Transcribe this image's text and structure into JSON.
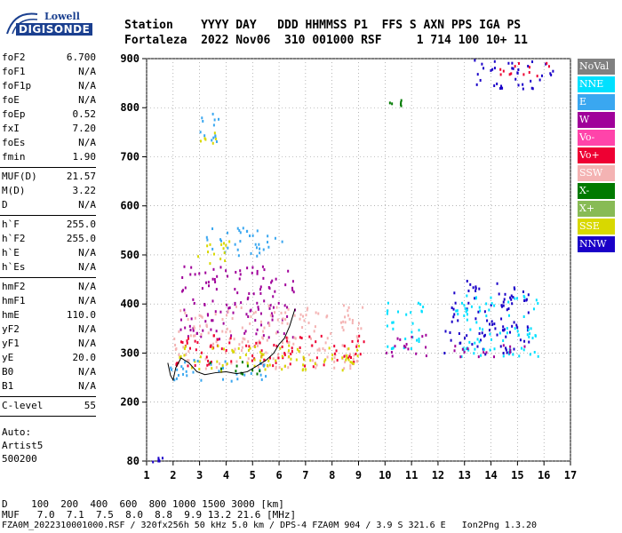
{
  "logo": {
    "line1": "Lowell",
    "line2": "DIGISONDE"
  },
  "header": {
    "row1": "Station    YYYY DAY   DDD HHMMSS P1  FFS S AXN PPS IGA PS",
    "row2": "Fortaleza  2022 Nov06  310 001000 RSF     1 714 100 10+ 11"
  },
  "params": {
    "group1": [
      {
        "k": "foF2",
        "v": "6.700"
      },
      {
        "k": "foF1",
        "v": "N/A"
      },
      {
        "k": "foF1p",
        "v": "N/A"
      },
      {
        "k": "foE",
        "v": "N/A"
      },
      {
        "k": "foEp",
        "v": "0.52"
      },
      {
        "k": "fxI",
        "v": "7.20"
      },
      {
        "k": "foEs",
        "v": "N/A"
      },
      {
        "k": "fmin",
        "v": "1.90"
      }
    ],
    "group2": [
      {
        "k": "MUF(D)",
        "v": "21.57"
      },
      {
        "k": "M(D)",
        "v": "3.22"
      },
      {
        "k": "D",
        "v": "N/A"
      }
    ],
    "group3": [
      {
        "k": "h`F",
        "v": "255.0"
      },
      {
        "k": "h`F2",
        "v": "255.0"
      },
      {
        "k": "h`E",
        "v": "N/A"
      },
      {
        "k": "h`Es",
        "v": "N/A"
      }
    ],
    "group4": [
      {
        "k": "hmF2",
        "v": "N/A"
      },
      {
        "k": "hmF1",
        "v": "N/A"
      },
      {
        "k": "hmE",
        "v": "110.0"
      },
      {
        "k": "yF2",
        "v": "N/A"
      },
      {
        "k": "yF1",
        "v": "N/A"
      },
      {
        "k": "yE",
        "v": "20.0"
      },
      {
        "k": "B0",
        "v": "N/A"
      },
      {
        "k": "B1",
        "v": "N/A"
      }
    ],
    "group5": [
      {
        "k": "C-level",
        "v": "55"
      }
    ],
    "auto_label": "Auto:",
    "auto_name": "Artist5",
    "auto_code": "500200"
  },
  "legend": [
    {
      "label": "NoVal",
      "color": "#808080"
    },
    {
      "label": "NNE",
      "color": "#00e0ff"
    },
    {
      "label": "E",
      "color": "#3aa7f0"
    },
    {
      "label": "W",
      "color": "#a0009a"
    },
    {
      "label": "Vo-",
      "color": "#ff44aa"
    },
    {
      "label": "Vo+",
      "color": "#ee0033"
    },
    {
      "label": "SSW",
      "color": "#f4b3b3"
    },
    {
      "label": "X-",
      "color": "#007a00"
    },
    {
      "label": "X+",
      "color": "#88bb55"
    },
    {
      "label": "SSE",
      "color": "#d8d800"
    },
    {
      "label": "NNW",
      "color": "#1a00c8"
    }
  ],
  "chart_data": {
    "type": "scatter",
    "xlim": [
      1,
      17
    ],
    "ylim": [
      80,
      900
    ],
    "x_ticks": [
      1,
      2,
      3,
      4,
      5,
      6,
      7,
      8,
      9,
      10,
      11,
      12,
      13,
      14,
      15,
      16,
      17
    ],
    "y_ticks": [
      80,
      200,
      300,
      400,
      500,
      600,
      700,
      800,
      900
    ],
    "grid": true,
    "legend_position": "right",
    "clusters": [
      {
        "name": "E",
        "x": [
          2.9,
          3.8
        ],
        "y": [
          720,
          790
        ],
        "color": "#3aa7f0"
      },
      {
        "name": "SSE",
        "x": [
          2.9,
          3.6
        ],
        "y": [
          725,
          755
        ],
        "color": "#d8d800"
      },
      {
        "name": "E",
        "x": [
          3.2,
          6.1
        ],
        "y": [
          500,
          560
        ],
        "color": "#3aa7f0"
      },
      {
        "name": "SSE",
        "x": [
          2.9,
          4.4
        ],
        "y": [
          485,
          530
        ],
        "color": "#d8d800"
      },
      {
        "name": "W",
        "x": [
          2.2,
          6.6
        ],
        "y": [
          330,
          480
        ],
        "color": "#a0009a"
      },
      {
        "name": "SSW",
        "x": [
          2.0,
          9.2
        ],
        "y": [
          270,
          400
        ],
        "color": "#f4b3b3"
      },
      {
        "name": "Vo+",
        "x": [
          2.0,
          9.2
        ],
        "y": [
          275,
          340
        ],
        "color": "#ee0033"
      },
      {
        "name": "SSE",
        "x": [
          2.2,
          9.2
        ],
        "y": [
          265,
          320
        ],
        "color": "#d8d800"
      },
      {
        "name": "E",
        "x": [
          1.8,
          5.6
        ],
        "y": [
          245,
          290
        ],
        "color": "#3aa7f0"
      },
      {
        "name": "X-",
        "x": [
          3.2,
          5.4
        ],
        "y": [
          260,
          285
        ],
        "color": "#007a00"
      },
      {
        "name": "NNE",
        "x": [
          10.0,
          11.5
        ],
        "y": [
          310,
          410
        ],
        "color": "#00e0ff"
      },
      {
        "name": "W",
        "x": [
          10.0,
          11.8
        ],
        "y": [
          295,
          340
        ],
        "color": "#a0009a"
      },
      {
        "name": "NNW",
        "x": [
          12.2,
          15.4
        ],
        "y": [
          300,
          450
        ],
        "color": "#1a00c8"
      },
      {
        "name": "NNE",
        "x": [
          12.5,
          15.8
        ],
        "y": [
          295,
          420
        ],
        "color": "#00e0ff"
      },
      {
        "name": "W",
        "x": [
          12.5,
          15.5
        ],
        "y": [
          295,
          320
        ],
        "color": "#a0009a"
      },
      {
        "name": "X-",
        "x": [
          10.0,
          10.6
        ],
        "y": [
          805,
          820
        ],
        "color": "#007a00"
      },
      {
        "name": "NNW",
        "x": [
          13.2,
          16.4
        ],
        "y": [
          840,
          900
        ],
        "color": "#1a00c8"
      },
      {
        "name": "Vo+",
        "x": [
          14.3,
          16.2
        ],
        "y": [
          860,
          895
        ],
        "color": "#ee0033"
      },
      {
        "name": "NNW",
        "x": [
          1.2,
          1.6
        ],
        "y": [
          80,
          90
        ],
        "color": "#1a00c8"
      }
    ],
    "trace": {
      "x": [
        1.8,
        1.9,
        2.0,
        2.1,
        2.3,
        2.6,
        2.9,
        3.2,
        3.6,
        4.0,
        4.4,
        4.8,
        5.2,
        5.5,
        5.8,
        6.0,
        6.2,
        6.4,
        6.6
      ],
      "y": [
        280,
        255,
        245,
        270,
        290,
        280,
        262,
        256,
        260,
        262,
        258,
        262,
        275,
        285,
        300,
        318,
        330,
        355,
        390
      ]
    }
  },
  "footer": {
    "d_row": "D    100  200  400  600  800 1000 1500 3000 [km]",
    "muf_row": "MUF   7.0  7.1  7.5  8.0  8.8  9.9 13.2 21.6 [MHz]",
    "info_row": "FZA0M_2022310001000.RSF / 320fx256h 50 kHz 5.0 km / DPS-4 FZA0M 904 / 3.9 S 321.6 E   Ion2Png 1.3.20"
  }
}
